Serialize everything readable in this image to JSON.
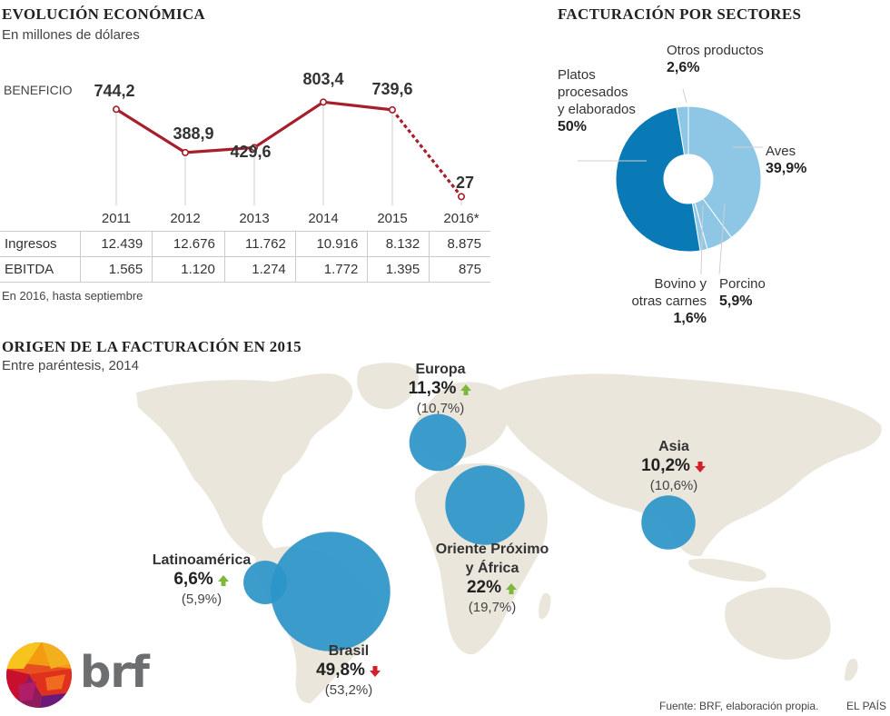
{
  "header": {
    "title": "EVOLUCIÓN ECONÓMICA",
    "subtitle": "En millones de dólares"
  },
  "line_chart": {
    "series_label": "BENEFICIO",
    "note": "En 2016, hasta septiembre"
  },
  "table": {
    "rows": [
      {
        "label": "Ingresos",
        "values": [
          "12.439",
          "12.676",
          "11.762",
          "10.916",
          "8.132",
          "8.875"
        ]
      },
      {
        "label": "EBITDA",
        "values": [
          "1.565",
          "1.120",
          "1.274",
          "1.772",
          "1.395",
          "875"
        ]
      }
    ]
  },
  "sectors": {
    "title": "FACTURACIÓN POR SECTORES"
  },
  "origin": {
    "title": "ORIGEN DE LA FACTURACIÓN EN 2015",
    "subtitle": "Entre paréntesis, 2014"
  },
  "logo": {
    "text": "brf"
  },
  "footer": {
    "source": "Fuente: BRF, elaboración propia.",
    "credit": "EL PAÍS"
  },
  "colors": {
    "line": "#a5202b",
    "donut_dark": "#0a7ab7",
    "donut_light": "#8ec6e6",
    "bubble": "#2b95c9",
    "map": "#ebe6dc",
    "up": "#7cb83a",
    "down": "#d0202a"
  },
  "chart_data": [
    {
      "type": "line",
      "title": "EVOLUCIÓN ECONÓMICA",
      "subtitle": "En millones de dólares",
      "categories": [
        "2011",
        "2012",
        "2013",
        "2014",
        "2015",
        "2016*"
      ],
      "series": [
        {
          "name": "BENEFICIO",
          "values": [
            744.2,
            388.9,
            429.6,
            803.4,
            739.6,
            27
          ],
          "labels": [
            "744,2",
            "388,9",
            "429,6",
            "803,4",
            "739,6",
            "27"
          ]
        }
      ],
      "dashed_last_segment": true,
      "ylim": [
        0,
        850
      ],
      "grid": "vertical"
    },
    {
      "type": "pie",
      "title": "FACTURACIÓN POR SECTORES",
      "donut": true,
      "slices": [
        {
          "name": "Aves",
          "label_lines": [
            "Aves"
          ],
          "value": 39.9,
          "display": "39,9%",
          "color": "#8ec6e6"
        },
        {
          "name": "Porcino",
          "label_lines": [
            "Porcino"
          ],
          "value": 5.9,
          "display": "5,9%",
          "color": "#8ec6e6"
        },
        {
          "name": "Bovino y otras carnes",
          "label_lines": [
            "Bovino y",
            "otras carnes"
          ],
          "value": 1.6,
          "display": "1,6%",
          "color": "#8ec6e6"
        },
        {
          "name": "Platos procesados y elaborados",
          "label_lines": [
            "Platos",
            "procesados",
            "y elaborados"
          ],
          "value": 50,
          "display": "50%",
          "color": "#0a7ab7"
        },
        {
          "name": "Otros productos",
          "label_lines": [
            "Otros productos"
          ],
          "value": 2.6,
          "display": "2,6%",
          "color": "#8ec6e6"
        }
      ]
    },
    {
      "type": "scatter",
      "title": "ORIGEN DE LA FACTURACIÓN EN 2015",
      "subtitle": "Entre paréntesis, 2014",
      "bubbles": [
        {
          "name": "Europa",
          "name_lines": [
            "Europa"
          ],
          "value": 11.3,
          "display": "11,3%",
          "prev": 10.7,
          "prev_display": "(10,7%)",
          "trend": "up"
        },
        {
          "name": "Asia",
          "name_lines": [
            "Asia"
          ],
          "value": 10.2,
          "display": "10,2%",
          "prev": 10.6,
          "prev_display": "(10,6%)",
          "trend": "down"
        },
        {
          "name": "Oriente Próximo y África",
          "name_lines": [
            "Oriente Próximo",
            "y África"
          ],
          "value": 22,
          "display": "22%",
          "prev": 19.7,
          "prev_display": "(19,7%)",
          "trend": "up"
        },
        {
          "name": "Latinoamérica",
          "name_lines": [
            "Latinoamérica"
          ],
          "value": 6.6,
          "display": "6,6%",
          "prev": 5.9,
          "prev_display": "(5,9%)",
          "trend": "up"
        },
        {
          "name": "Brasil",
          "name_lines": [
            "Brasil"
          ],
          "value": 49.8,
          "display": "49,8%",
          "prev": 53.2,
          "prev_display": "(53,2%)",
          "trend": "down"
        }
      ]
    }
  ]
}
